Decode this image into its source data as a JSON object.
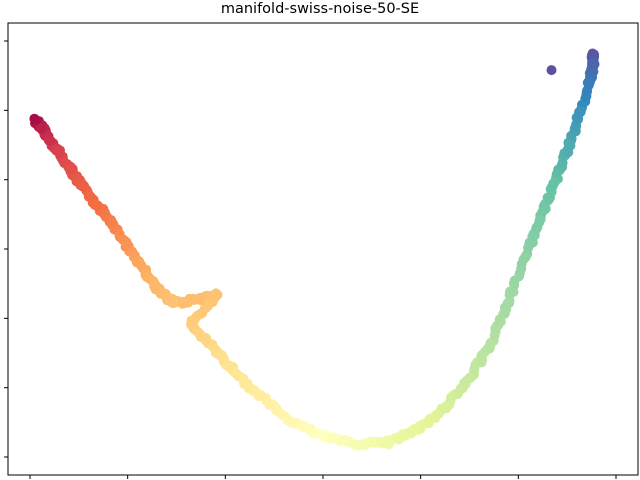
{
  "chart_data": {
    "type": "scatter",
    "title": "manifold-swiss-noise-50-SE",
    "xlabel": "",
    "ylabel": "",
    "x_ticks_shown_without_labels": 7,
    "y_ticks_shown_without_labels": 7,
    "xlim": [
      0,
      1
    ],
    "ylim": [
      0,
      1
    ],
    "grid": false,
    "legend": "none",
    "colormap": "Spectral",
    "colormap_stops": [
      "#9e0142",
      "#d53e4f",
      "#f46d43",
      "#fdae61",
      "#fee08b",
      "#ffffbf",
      "#e6f598",
      "#abdda4",
      "#66c2a5",
      "#3288bd",
      "#5e4fa2"
    ],
    "color_value_range": [
      0,
      1
    ],
    "series": [
      {
        "points": [
          {
            "x": 0.01,
            "y": 0.81,
            "c": 0.02
          },
          {
            "x": 0.02,
            "y": 0.79,
            "c": 0.05
          },
          {
            "x": 0.035,
            "y": 0.76,
            "c": 0.08
          },
          {
            "x": 0.05,
            "y": 0.73,
            "c": 0.11
          },
          {
            "x": 0.07,
            "y": 0.69,
            "c": 0.14
          },
          {
            "x": 0.09,
            "y": 0.65,
            "c": 0.17
          },
          {
            "x": 0.115,
            "y": 0.605,
            "c": 0.2
          },
          {
            "x": 0.14,
            "y": 0.56,
            "c": 0.23
          },
          {
            "x": 0.165,
            "y": 0.51,
            "c": 0.26
          },
          {
            "x": 0.19,
            "y": 0.46,
            "c": 0.29
          },
          {
            "x": 0.215,
            "y": 0.41,
            "c": 0.32
          },
          {
            "x": 0.245,
            "y": 0.37,
            "c": 0.34
          },
          {
            "x": 0.29,
            "y": 0.38,
            "c": 0.33
          },
          {
            "x": 0.32,
            "y": 0.39,
            "c": 0.34
          },
          {
            "x": 0.275,
            "y": 0.32,
            "c": 0.36
          },
          {
            "x": 0.3,
            "y": 0.28,
            "c": 0.38
          },
          {
            "x": 0.34,
            "y": 0.22,
            "c": 0.41
          },
          {
            "x": 0.39,
            "y": 0.15,
            "c": 0.44
          },
          {
            "x": 0.44,
            "y": 0.09,
            "c": 0.47
          },
          {
            "x": 0.5,
            "y": 0.05,
            "c": 0.5
          },
          {
            "x": 0.555,
            "y": 0.03,
            "c": 0.53
          },
          {
            "x": 0.61,
            "y": 0.035,
            "c": 0.56
          },
          {
            "x": 0.66,
            "y": 0.065,
            "c": 0.59
          },
          {
            "x": 0.71,
            "y": 0.12,
            "c": 0.62
          },
          {
            "x": 0.75,
            "y": 0.19,
            "c": 0.65
          },
          {
            "x": 0.785,
            "y": 0.27,
            "c": 0.68
          },
          {
            "x": 0.815,
            "y": 0.37,
            "c": 0.71
          },
          {
            "x": 0.845,
            "y": 0.48,
            "c": 0.74
          },
          {
            "x": 0.87,
            "y": 0.57,
            "c": 0.77
          },
          {
            "x": 0.895,
            "y": 0.66,
            "c": 0.8
          },
          {
            "x": 0.92,
            "y": 0.75,
            "c": 0.84
          },
          {
            "x": 0.94,
            "y": 0.83,
            "c": 0.88
          },
          {
            "x": 0.955,
            "y": 0.9,
            "c": 0.92
          },
          {
            "x": 0.962,
            "y": 0.95,
            "c": 0.96
          },
          {
            "x": 0.96,
            "y": 0.97,
            "c": 0.99
          },
          {
            "x": 0.89,
            "y": 0.93,
            "c": 1.0
          }
        ]
      }
    ]
  }
}
